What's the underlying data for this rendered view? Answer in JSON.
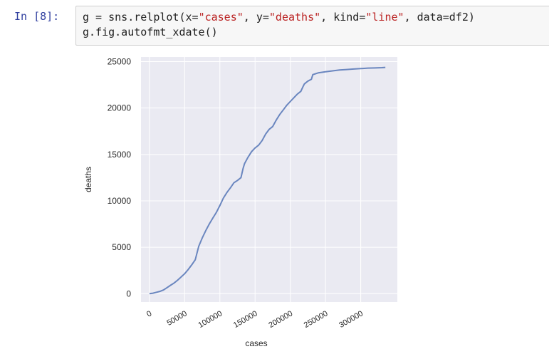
{
  "cell": {
    "prompt": "In [8]:",
    "code": {
      "line1": {
        "p1": "g = sns.relplot(x=",
        "s1": "\"cases\"",
        "p2": ", y=",
        "s2": "\"deaths\"",
        "p3": ", kind=",
        "s3": "\"line\"",
        "p4": ", data=df2)"
      },
      "line2": "g.fig.autofmt_xdate()"
    }
  },
  "chart_data": {
    "type": "line",
    "title": "",
    "xlabel": "cases",
    "ylabel": "deaths",
    "xlim": [
      -12000,
      352000
    ],
    "ylim": [
      -900,
      25500
    ],
    "xticks": [
      0,
      50000,
      100000,
      150000,
      200000,
      250000,
      300000
    ],
    "xtick_labels": [
      "0",
      "50000",
      "100000",
      "150000",
      "200000",
      "250000",
      "300000"
    ],
    "yticks": [
      0,
      5000,
      10000,
      15000,
      20000,
      25000
    ],
    "ytick_labels": [
      "0",
      "5000",
      "10000",
      "15000",
      "20000",
      "25000"
    ],
    "grid": true,
    "colors": {
      "line": "#6a86bf",
      "background": "#eaeaf2",
      "grid": "#ffffff"
    },
    "series": [
      {
        "x": [
          0,
          5000,
          10000,
          15000,
          20000,
          25000,
          30000,
          35000,
          40000,
          45000,
          50000,
          55000,
          60000,
          65000,
          70000,
          75000,
          80000,
          85000,
          90000,
          95000,
          100000,
          105000,
          110000,
          115000,
          120000,
          125000,
          130000,
          133000,
          135000,
          140000,
          145000,
          150000,
          155000,
          160000,
          165000,
          170000,
          175000,
          180000,
          185000,
          190000,
          195000,
          200000,
          205000,
          210000,
          215000,
          218000,
          220000,
          225000,
          230000,
          232000,
          240000,
          250000,
          260000,
          270000,
          280000,
          290000,
          300000,
          310000,
          320000,
          330000,
          335000
        ],
        "y": [
          0,
          50,
          150,
          250,
          400,
          650,
          900,
          1150,
          1450,
          1800,
          2150,
          2600,
          3100,
          3650,
          5100,
          6000,
          6800,
          7500,
          8150,
          8750,
          9500,
          10300,
          10900,
          11400,
          11950,
          12200,
          12500,
          13500,
          14000,
          14700,
          15300,
          15700,
          16000,
          16500,
          17200,
          17700,
          18000,
          18700,
          19300,
          19800,
          20300,
          20700,
          21100,
          21500,
          21800,
          22300,
          22600,
          22900,
          23100,
          23600,
          23800,
          23900,
          24000,
          24100,
          24150,
          24200,
          24250,
          24300,
          24320,
          24350,
          24380
        ]
      }
    ]
  }
}
